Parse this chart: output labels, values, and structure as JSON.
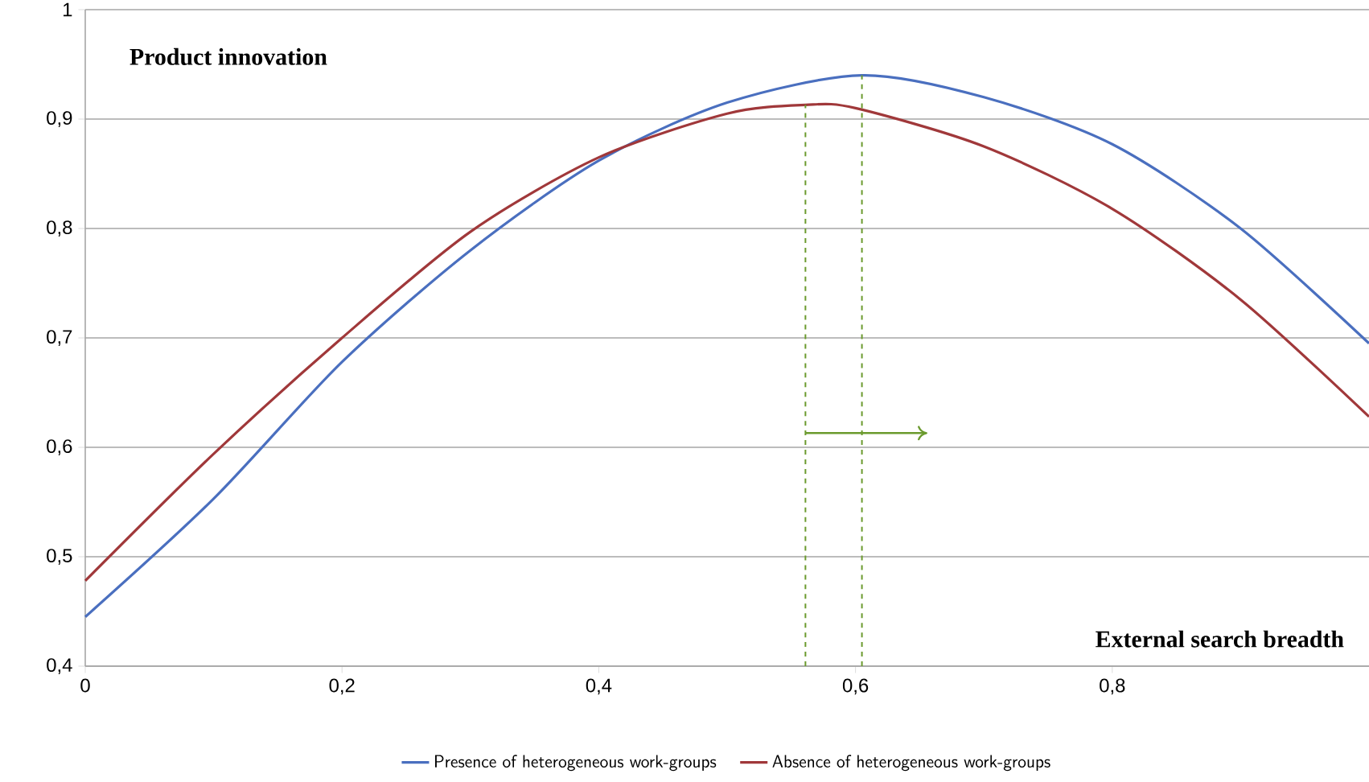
{
  "chart_data": {
    "type": "line",
    "xlabel": "External search breadth",
    "ylabel": "Product innovation",
    "xlim": [
      0,
      1
    ],
    "ylim": [
      0.4,
      1
    ],
    "xticks": [
      0,
      {
        "value": 0.2,
        "label": "0,2"
      },
      {
        "value": 0.4,
        "label": "0,4"
      },
      {
        "value": 0.6,
        "label": "0,6"
      },
      {
        "value": 0.8,
        "label": "0,8"
      }
    ],
    "yticks": [
      {
        "value": 0.4,
        "label": "0,4"
      },
      {
        "value": 0.5,
        "label": "0,5"
      },
      {
        "value": 0.6,
        "label": "0,6"
      },
      {
        "value": 0.7,
        "label": "0,7"
      },
      {
        "value": 0.8,
        "label": "0,8"
      },
      {
        "value": 0.9,
        "label": "0,9"
      },
      1
    ],
    "grid": "y",
    "legend": "bottom",
    "line_style": "solid",
    "x": [
      0,
      0.1,
      0.2,
      0.3,
      0.4,
      0.5,
      0.605,
      0.7,
      0.8,
      0.9,
      1.0
    ],
    "series": [
      {
        "name": "Presence of heterogeneous work-groups",
        "color": "#4a6fbf",
        "values": [
          0.445,
          0.553,
          0.678,
          0.78,
          0.862,
          0.915,
          0.94,
          0.92,
          0.877,
          0.8,
          0.695
        ]
      },
      {
        "name": "Absence of heterogeneous work-groups",
        "color": "#a0383a",
        "x": [
          0,
          0.1,
          0.2,
          0.3,
          0.4,
          0.5,
          0.561,
          0.6,
          0.7,
          0.8,
          0.9,
          1.0
        ],
        "values": [
          0.478,
          0.594,
          0.7,
          0.797,
          0.865,
          0.905,
          0.913,
          0.91,
          0.875,
          0.818,
          0.735,
          0.628
        ]
      },
      {
        "type": "line",
        "color": "#6b9a2e",
        "line_style": "dashed",
        "x": [
          0.561,
          0.561
        ],
        "values": [
          0.4,
          0.913
        ]
      },
      {
        "type": "line",
        "color": "#6b9a2e",
        "line_style": "dashed",
        "x": [
          0.605,
          0.605
        ],
        "values": [
          0.4,
          0.94
        ]
      },
      {
        "type": "line",
        "color": "#6b9a2e",
        "line_style": "solid",
        "x": [
          0.561,
          0.656
        ],
        "values": [
          0.613,
          0.613
        ]
      }
    ]
  }
}
